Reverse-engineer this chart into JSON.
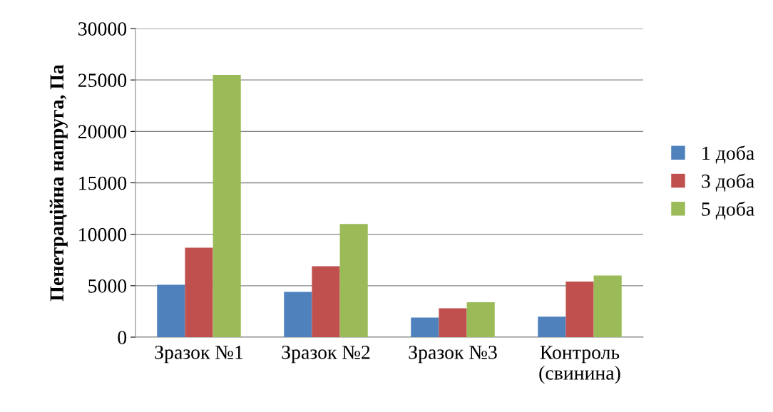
{
  "chart_data": {
    "type": "bar",
    "ylabel": "Пенетраційна напруга, Па",
    "categories": [
      "Зразок №1",
      "Зразок №2",
      "Зразок №3",
      "Контроль\n(свинина)"
    ],
    "series": [
      {
        "name": "1 доба",
        "color": "#4f81bd",
        "values": [
          5100,
          4400,
          1900,
          2000
        ]
      },
      {
        "name": "3 доба",
        "color": "#c0504d",
        "values": [
          8700,
          6900,
          2800,
          5400
        ]
      },
      {
        "name": "5 доба",
        "color": "#9bbb59",
        "values": [
          25500,
          11000,
          3400,
          6000
        ]
      }
    ],
    "ylim": [
      0,
      30000
    ],
    "yticks": [
      0,
      5000,
      10000,
      15000,
      20000,
      25000,
      30000
    ],
    "grid": "y",
    "legend": "right"
  }
}
